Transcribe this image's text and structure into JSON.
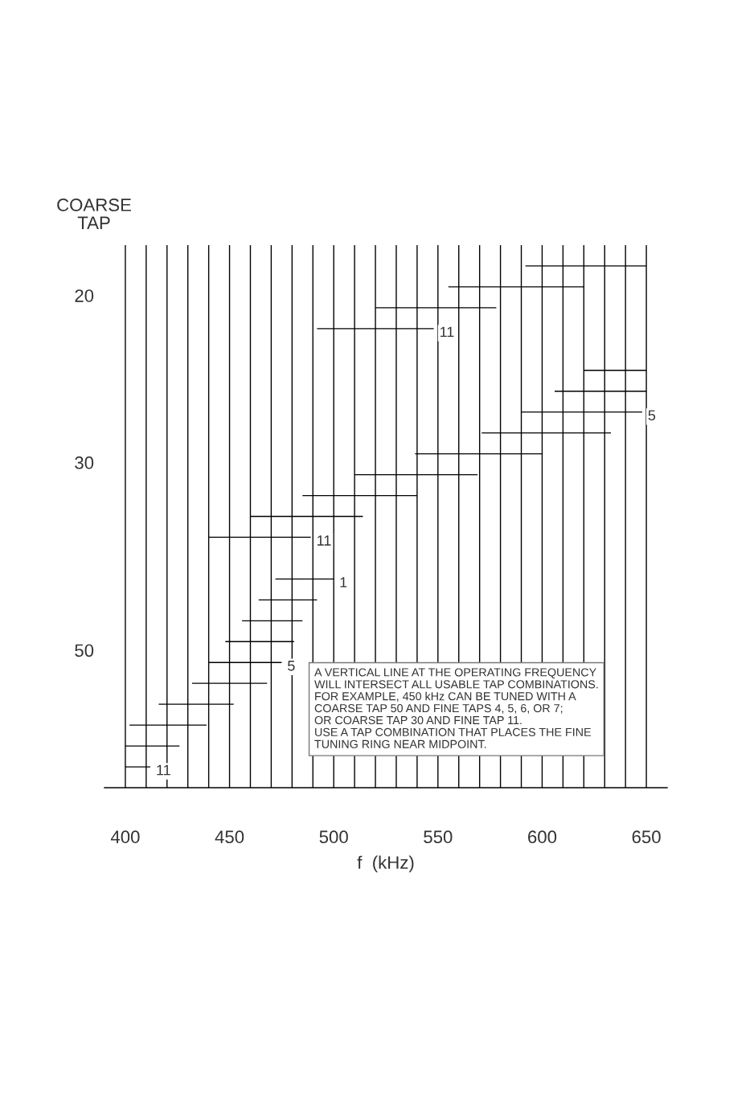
{
  "chart_data": {
    "type": "bar",
    "orientation": "horizontal",
    "xlabel": "f  (kHz)",
    "ylabel": "COARSE\nTAP",
    "categories": [
      null,
      null,
      null,
      null,
      null,
      null,
      null,
      null,
      null,
      null,
      null,
      null,
      null,
      null,
      null,
      null,
      null,
      null,
      null,
      null,
      null,
      null,
      null,
      null,
      null
    ],
    "base": [
      592,
      555,
      520,
      492,
      null,
      620,
      606,
      590,
      571,
      539,
      510,
      485,
      460,
      440,
      null,
      472,
      464,
      456,
      448,
      440,
      432,
      416,
      402,
      400,
      400
    ],
    "values": [
      58,
      65,
      58,
      56,
      null,
      30,
      44,
      58,
      62,
      61,
      59,
      55,
      54,
      49,
      null,
      28,
      28,
      29,
      33,
      35,
      36,
      36,
      37,
      26,
      12
    ],
    "color": "#000000",
    "xlim": [
      390,
      660
    ],
    "xticks": [
      400,
      {
        "value": 410,
        "label": null
      },
      {
        "value": 420,
        "label": null
      },
      {
        "value": 430,
        "label": null
      },
      {
        "value": 440,
        "label": null
      },
      450,
      {
        "value": 460,
        "label": null
      },
      {
        "value": 470,
        "label": null
      },
      {
        "value": 480,
        "label": null
      },
      {
        "value": 490,
        "label": null
      },
      500,
      {
        "value": 510,
        "label": null
      },
      {
        "value": 520,
        "label": null
      },
      {
        "value": 530,
        "label": null
      },
      {
        "value": 540,
        "label": null
      },
      550,
      {
        "value": 560,
        "label": null
      },
      {
        "value": 570,
        "label": null
      },
      {
        "value": 580,
        "label": null
      },
      {
        "value": 590,
        "label": null
      },
      600,
      {
        "value": 610,
        "label": null
      },
      {
        "value": 620,
        "label": null
      },
      {
        "value": 630,
        "label": null
      },
      {
        "value": 640,
        "label": null
      },
      650
    ],
    "grid": "x",
    "annotations": [
      "20",
      "30",
      "50",
      {
        "text": "11",
        "x": 548
      },
      {
        "text": "5",
        "x": 648
      },
      {
        "text": "11",
        "x": 489
      },
      {
        "text": "1",
        "x": 500
      },
      {
        "text": "5",
        "x": 475
      },
      {
        "text": "11",
        "x": 412
      },
      "A VERTICAL LINE AT THE OPERATING FREQUENCY\nWILL INTERSECT ALL USABLE TAP COMBINATIONS.\nFOR EXAMPLE, 450 kHz CAN BE TUNED WITH A\nCOARSE TAP 50 AND FINE TAPS 4, 5, 6, OR 7;\nOR COARSE TAP 30 AND FINE TAP 11.\nUSE A TAP COMBINATION THAT PLACES THE FINE\nTUNING RING NEAR MIDPOINT."
    ]
  }
}
